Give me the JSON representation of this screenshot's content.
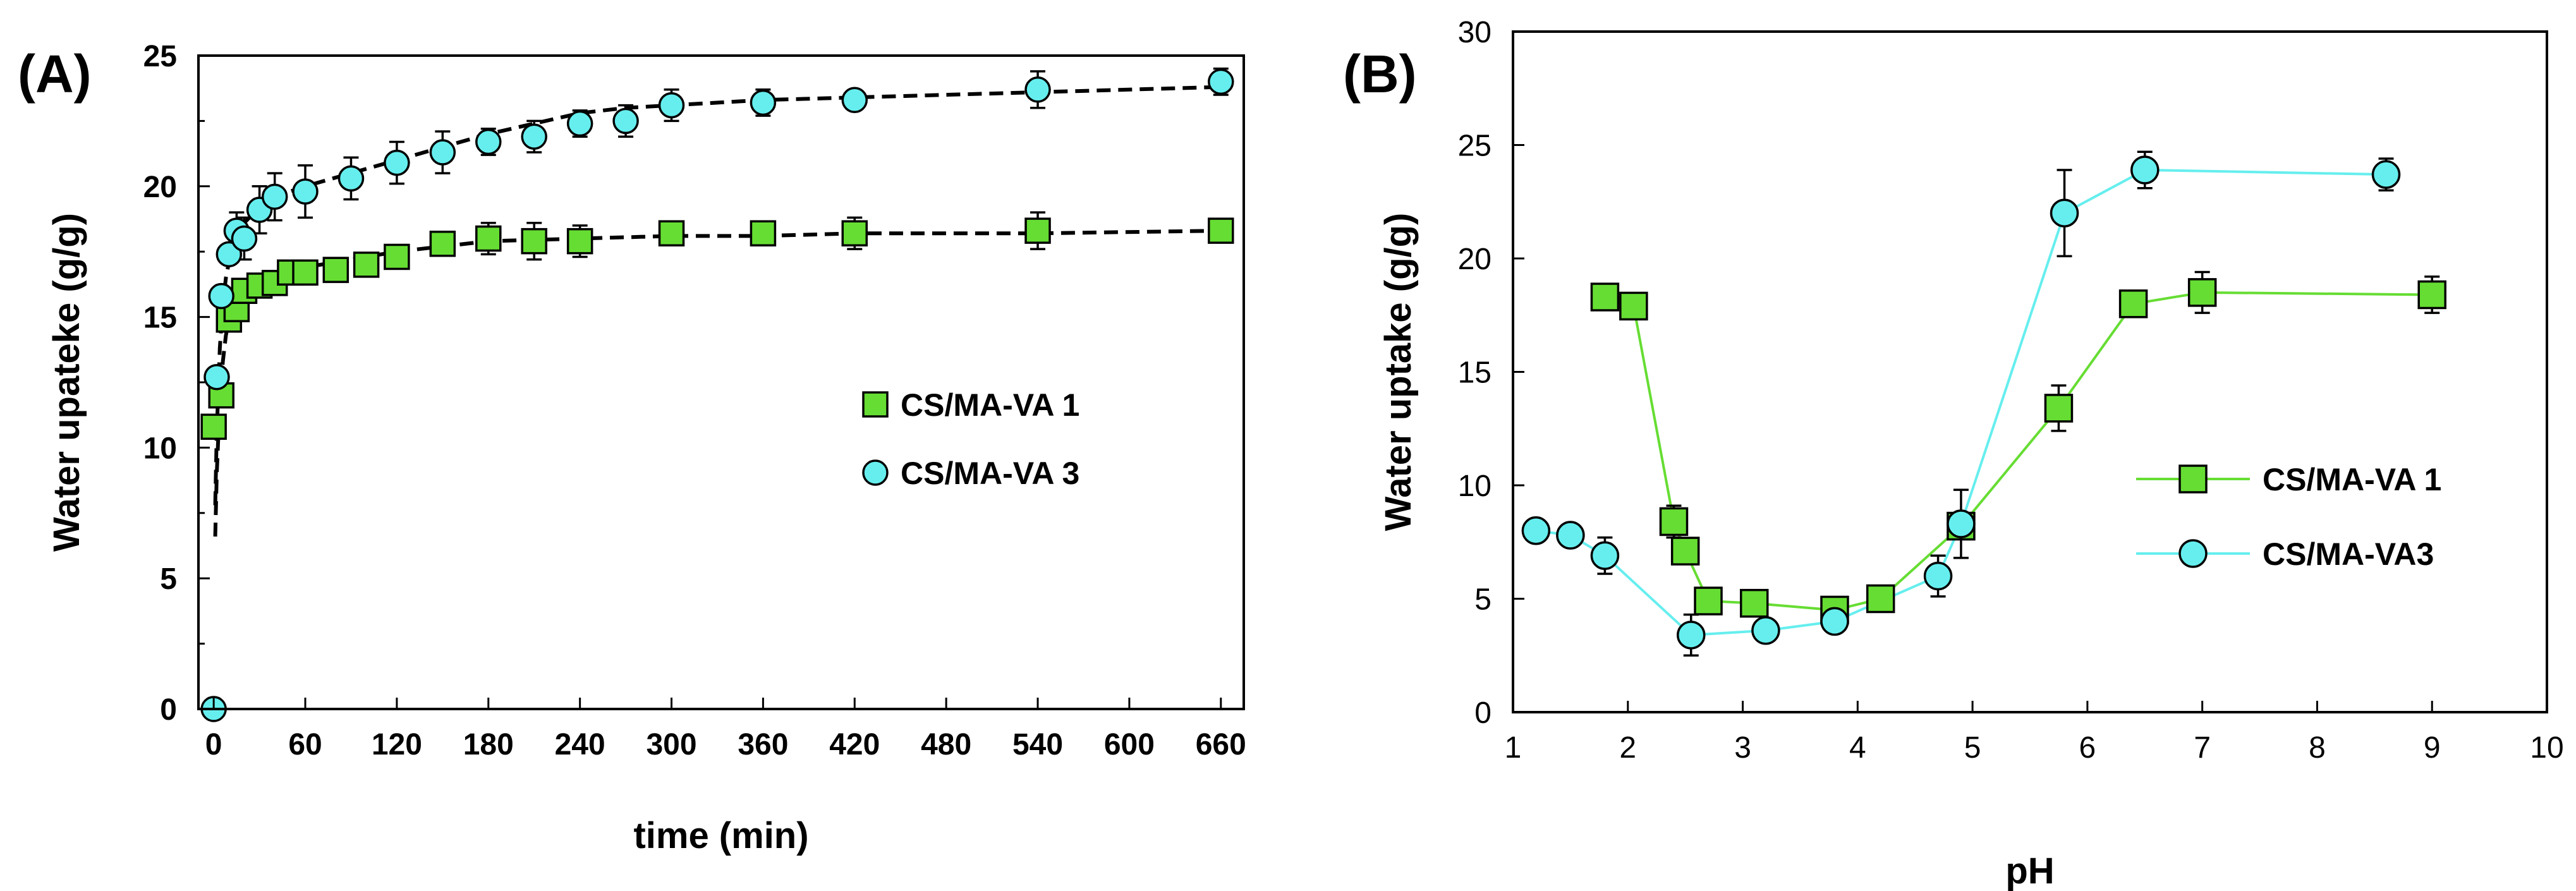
{
  "chart_data": [
    {
      "panel": "(A)",
      "type": "scatter",
      "xlabel": "time (min)",
      "ylabel": "Water upateke (g/g)",
      "xlim": [
        -10,
        675
      ],
      "ylim": [
        0,
        25
      ],
      "xticks": [
        0,
        60,
        120,
        180,
        240,
        300,
        360,
        420,
        480,
        540,
        600,
        660
      ],
      "yticks": [
        0,
        5,
        10,
        15,
        20,
        25
      ],
      "grid": false,
      "legend_position": "center-right",
      "series": [
        {
          "name": "CS/MA-VA 1",
          "marker": "square",
          "color": "#66dd33",
          "x": [
            0,
            5,
            10,
            15,
            20,
            30,
            40,
            50,
            60,
            80,
            100,
            120,
            150,
            180,
            210,
            240,
            300,
            360,
            420,
            540,
            660
          ],
          "y": [
            10.8,
            12.0,
            14.9,
            15.3,
            16.0,
            16.2,
            16.3,
            16.7,
            16.7,
            16.8,
            17.0,
            17.3,
            17.8,
            18.0,
            17.9,
            17.9,
            18.2,
            18.2,
            18.2,
            18.3,
            18.3
          ],
          "err": [
            0.2,
            0.3,
            0.3,
            0.4,
            0.3,
            0.3,
            0.3,
            0.3,
            0.3,
            0.3,
            0.3,
            0.3,
            0.3,
            0.6,
            0.7,
            0.6,
            0.4,
            0.3,
            0.6,
            0.7,
            0.3
          ]
        },
        {
          "name": "CS/MA-VA 3",
          "marker": "circle",
          "color": "#66eeee",
          "x": [
            0,
            2,
            5,
            10,
            15,
            20,
            30,
            40,
            60,
            90,
            120,
            150,
            180,
            210,
            240,
            270,
            300,
            360,
            420,
            540,
            660
          ],
          "y": [
            0,
            12.7,
            15.8,
            17.4,
            18.3,
            18.0,
            19.1,
            19.6,
            19.8,
            20.3,
            20.9,
            21.3,
            21.7,
            21.9,
            22.4,
            22.5,
            23.1,
            23.2,
            23.3,
            23.7,
            24.0
          ],
          "err": [
            0,
            0.3,
            0.3,
            0.3,
            0.7,
            0.8,
            0.9,
            0.9,
            1.0,
            0.8,
            0.8,
            0.8,
            0.5,
            0.6,
            0.5,
            0.6,
            0.6,
            0.5,
            0.3,
            0.7,
            0.5
          ]
        }
      ],
      "fit_lines": [
        {
          "name": "fit CS/MA-VA 1",
          "x": [
            1,
            2,
            4,
            6,
            8,
            10,
            15,
            20,
            30,
            40,
            60,
            90,
            120,
            150,
            180,
            240,
            300,
            360,
            420,
            540,
            660
          ],
          "y": [
            6.6,
            9.0,
            11.8,
            13.3,
            14.3,
            14.9,
            15.6,
            16.0,
            16.4,
            16.6,
            16.9,
            17.2,
            17.5,
            17.7,
            17.9,
            18.0,
            18.1,
            18.1,
            18.2,
            18.2,
            18.3
          ]
        },
        {
          "name": "fit CS/MA-VA 3",
          "x": [
            1,
            2,
            4,
            6,
            8,
            10,
            15,
            20,
            30,
            40,
            60,
            90,
            120,
            150,
            180,
            210,
            240,
            270,
            300,
            360,
            420,
            540,
            660
          ],
          "y": [
            7.8,
            10.6,
            13.8,
            15.5,
            16.5,
            17.1,
            18.0,
            18.6,
            19.2,
            19.6,
            20.0,
            20.5,
            21.0,
            21.5,
            22.0,
            22.4,
            22.8,
            23.0,
            23.1,
            23.3,
            23.4,
            23.6,
            23.8
          ]
        }
      ]
    },
    {
      "panel": "(B)",
      "type": "line",
      "xlabel": "pH",
      "ylabel": "Water uptake (g/g)",
      "xlim": [
        1,
        10
      ],
      "ylim": [
        0,
        30
      ],
      "xticks": [
        1,
        2,
        3,
        4,
        5,
        6,
        7,
        8,
        9,
        10
      ],
      "yticks": [
        0,
        5,
        10,
        15,
        20,
        25,
        30
      ],
      "grid": false,
      "legend_position": "center-right",
      "series": [
        {
          "name": "CS/MA-VA 1",
          "marker": "square",
          "color": "#66dd33",
          "x": [
            1.8,
            2.05,
            2.4,
            2.5,
            2.7,
            3.1,
            3.8,
            4.2,
            4.9,
            5.75,
            6.4,
            7.0,
            9.0
          ],
          "y": [
            18.3,
            17.9,
            8.4,
            7.1,
            4.9,
            4.8,
            4.5,
            5.0,
            8.2,
            13.4,
            18.0,
            18.5,
            18.4
          ],
          "err": [
            0.2,
            0.2,
            0.7,
            0.3,
            0.3,
            0.3,
            0.3,
            0.3,
            0.5,
            1.0,
            0.4,
            0.9,
            0.8
          ]
        },
        {
          "name": "CS/MA-VA3",
          "marker": "circle",
          "color": "#66eeee",
          "x": [
            1.2,
            1.5,
            1.8,
            2.55,
            3.2,
            3.8,
            4.7,
            4.9,
            5.8,
            6.5,
            8.6
          ],
          "y": [
            8.0,
            7.8,
            6.9,
            3.4,
            3.6,
            4.0,
            6.0,
            8.3,
            22.0,
            23.9,
            23.7
          ],
          "err": [
            0.2,
            0.2,
            0.8,
            0.9,
            0.3,
            0.4,
            0.9,
            1.5,
            1.9,
            0.8,
            0.7
          ]
        }
      ]
    }
  ]
}
